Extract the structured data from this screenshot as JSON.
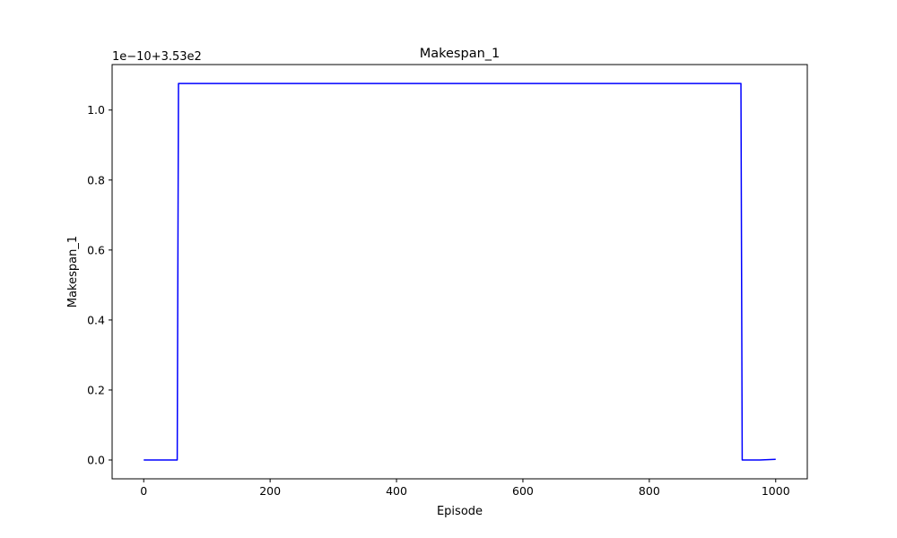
{
  "chart_data": {
    "type": "line",
    "title": "Makespan_1",
    "xlabel": "Episode",
    "ylabel": "Makespan_1",
    "offset_label": "1e−10+3.53e2",
    "xlim": [
      -50,
      1050
    ],
    "ylim": [
      -0.0538,
      1.13
    ],
    "xticks": [
      0,
      200,
      400,
      600,
      800,
      1000
    ],
    "xtick_labels": [
      "0",
      "200",
      "400",
      "600",
      "800",
      "1000"
    ],
    "yticks": [
      0.0,
      0.2,
      0.4,
      0.6,
      0.8,
      1.0
    ],
    "ytick_labels": [
      "0.0",
      "0.2",
      "0.4",
      "0.6",
      "0.8",
      "1.0"
    ],
    "grid": false,
    "series": [
      {
        "color": "#0000ff",
        "x": [
          0,
          53,
          55,
          945,
          947,
          975,
          1000
        ],
        "y": [
          0.0,
          0.0,
          1.076,
          1.076,
          0.0,
          0.0,
          0.002
        ]
      }
    ]
  }
}
